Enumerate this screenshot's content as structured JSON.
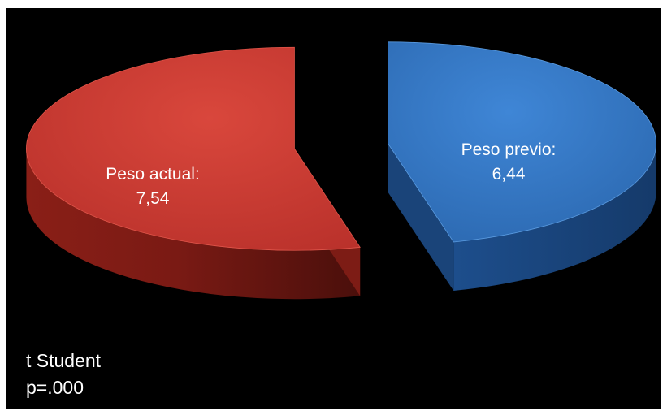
{
  "chart_data": {
    "type": "pie",
    "style": "3d-exploded",
    "categories": [
      "Peso actual:",
      "Peso previo:"
    ],
    "values": [
      7.54,
      6.44
    ],
    "value_labels": [
      "7,54",
      "6,44"
    ],
    "colors": [
      "#c0392b",
      "#2e6db5"
    ],
    "legend": "none"
  },
  "note": {
    "line1": "t Student",
    "line2": "p=.000"
  }
}
